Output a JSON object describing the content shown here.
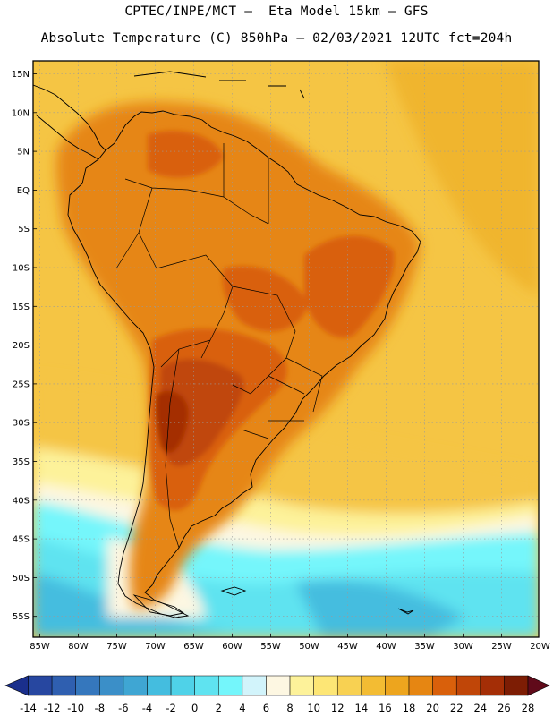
{
  "header": {
    "line1": "CPTEC/INPE/MCT –  Eta Model 15km – GFS",
    "line2": "Absolute Temperature (C) 850hPa – 02/03/2021 12UTC fct=204h"
  },
  "axes": {
    "lat_labels": [
      "15N",
      "10N",
      "5N",
      "EQ",
      "5S",
      "10S",
      "15S",
      "20S",
      "25S",
      "30S",
      "35S",
      "40S",
      "45S",
      "50S",
      "55S"
    ],
    "lon_labels": [
      "85W",
      "80W",
      "75W",
      "70W",
      "65W",
      "60W",
      "55W",
      "50W",
      "45W",
      "40W",
      "35W",
      "30W",
      "25W",
      "20W"
    ]
  },
  "colorbar": {
    "labels": [
      "-14",
      "-12",
      "-10",
      "-8",
      "-6",
      "-4",
      "-2",
      "0",
      "2",
      "4",
      "6",
      "8",
      "10",
      "12",
      "14",
      "16",
      "18",
      "20",
      "22",
      "24",
      "26",
      "28"
    ],
    "colors": [
      "#1a2f8c",
      "#2747a0",
      "#2f5fb0",
      "#3577bd",
      "#3b8fc8",
      "#3fa6d3",
      "#44bddf",
      "#4fd2e8",
      "#5fe3f0",
      "#74f6fb",
      "#d2f4fb",
      "#fdf7e2",
      "#fdf29a",
      "#fde675",
      "#f8d152",
      "#f3bc33",
      "#eda51e",
      "#e68612",
      "#d9600b",
      "#c04608",
      "#a42e06",
      "#7d1d04",
      "#600a1a"
    ]
  },
  "map": {
    "palette": {
      "ocean_warm": "#f0b52e",
      "ocean_mild": "#f5c544",
      "ocean_cool": "#fdf29a",
      "ocean_pale": "#fdf7e2",
      "ocean_cyan": "#74f6fb",
      "ocean_cyan2": "#5fe3f0",
      "ocean_blue": "#44bddf",
      "land_orange": "#e68612",
      "land_hot": "#d9600b",
      "land_hotter": "#c04608",
      "land_max": "#a42e06",
      "frame": "#000000",
      "grid": "#9a9a9a"
    }
  }
}
